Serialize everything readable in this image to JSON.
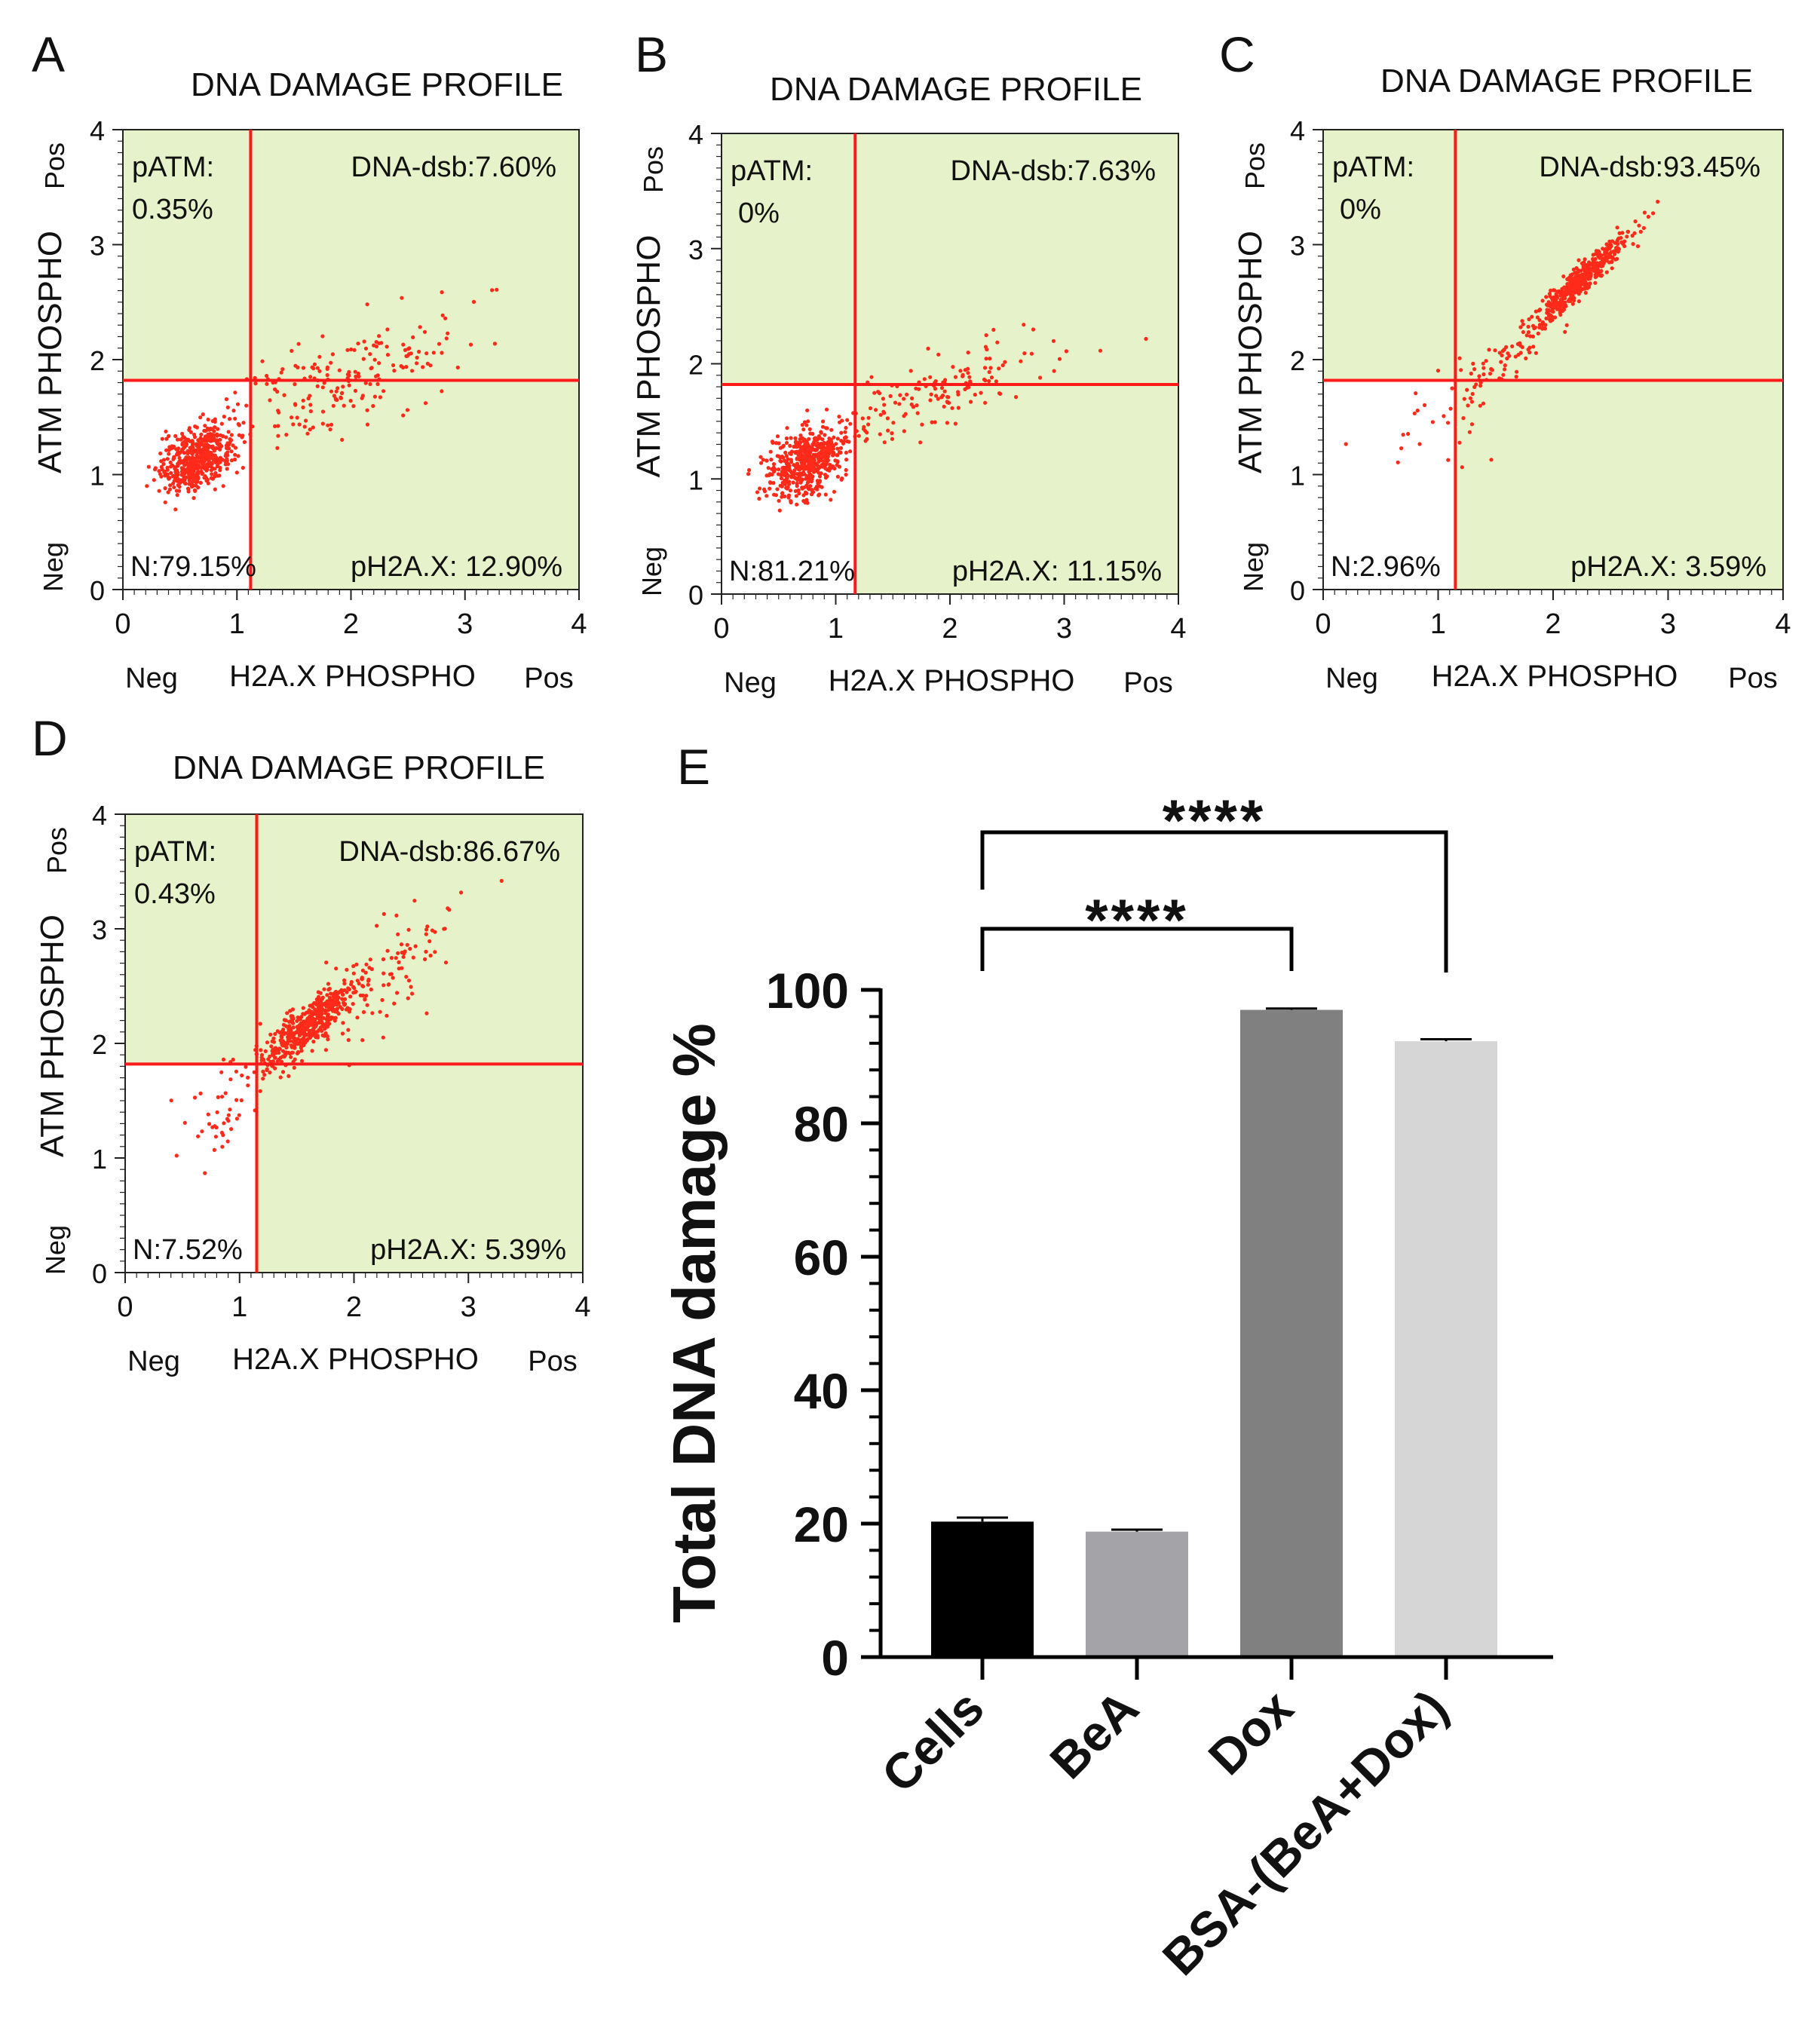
{
  "colors": {
    "quadrant_fill": "#e6f2c9",
    "gate_line": "#ff1a1a",
    "event_dot": "#ff2a1a",
    "axis": "#222222",
    "bar_cells": "#000000",
    "bar_bea": "#a4a4a8",
    "bar_dox": "#808080",
    "bar_bsa": "#d6d6d6"
  },
  "chart_data": [
    {
      "panel": "A",
      "type": "scatter",
      "title": "DNA DAMAGE PROFILE",
      "xlabel": "H2A.X PHOSPHO",
      "ylabel": "ATM PHOSPHO",
      "x_neg_label": "Neg",
      "x_pos_label": "Pos",
      "y_neg_label": "Neg",
      "y_pos_label": "Pos",
      "xlim": [
        0,
        4
      ],
      "ylim": [
        0,
        4
      ],
      "ticks": [
        "0",
        "1",
        "2",
        "3",
        "4"
      ],
      "gate": {
        "x": 1.12,
        "y": 1.82
      },
      "quadrants": {
        "upper_left": "pATM:\n0.35%",
        "upper_right": "DNA-dsb:7.60%",
        "lower_left": "N:79.15%",
        "lower_right": "pH2A.X: 12.90%"
      },
      "point_clusters": [
        {
          "cx": 0.65,
          "cy": 1.15,
          "sx": 0.16,
          "sy": 0.14,
          "n": 520,
          "r": 0.35
        },
        {
          "cx": 1.9,
          "cy": 1.8,
          "sx": 0.55,
          "sy": 0.3,
          "n": 190,
          "r": 0.7
        }
      ]
    },
    {
      "panel": "B",
      "type": "scatter",
      "title": "DNA DAMAGE PROFILE",
      "xlabel": "H2A.X PHOSPHO",
      "ylabel": "ATM PHOSPHO",
      "x_neg_label": "Neg",
      "x_pos_label": "Pos",
      "y_neg_label": "Neg",
      "y_pos_label": "Pos",
      "xlim": [
        0,
        4
      ],
      "ylim": [
        0,
        4
      ],
      "ticks": [
        "0",
        "1",
        "2",
        "3",
        "4"
      ],
      "gate": {
        "x": 1.17,
        "y": 1.82
      },
      "quadrants": {
        "upper_left": "pATM:\n0%",
        "upper_right": "DNA-dsb:7.63%",
        "lower_left": "N:81.21%",
        "lower_right": "pH2A.X: 11.15%"
      },
      "point_clusters": [
        {
          "cx": 0.75,
          "cy": 1.15,
          "sx": 0.18,
          "sy": 0.15,
          "n": 540,
          "r": 0.4
        },
        {
          "cx": 1.9,
          "cy": 1.75,
          "sx": 0.5,
          "sy": 0.25,
          "n": 150,
          "r": 0.75
        }
      ]
    },
    {
      "panel": "C",
      "type": "scatter",
      "title": "DNA DAMAGE PROFILE",
      "xlabel": "H2A.X PHOSPHO",
      "ylabel": "ATM PHOSPHO",
      "x_neg_label": "Neg",
      "x_pos_label": "Pos",
      "y_neg_label": "Neg",
      "y_pos_label": "Pos",
      "xlim": [
        0,
        4
      ],
      "ylim": [
        0,
        4
      ],
      "ticks": [
        "0",
        "1",
        "2",
        "3",
        "4"
      ],
      "gate": {
        "x": 1.15,
        "y": 1.82
      },
      "quadrants": {
        "upper_left": "pATM:\n0%",
        "upper_right": "DNA-dsb:93.45%",
        "lower_left": "N:2.96%",
        "lower_right": "pH2A.X: 3.59%"
      },
      "point_clusters": [
        {
          "cx": 2.25,
          "cy": 2.7,
          "sx": 0.22,
          "sy": 0.22,
          "n": 460,
          "r": 0.95
        },
        {
          "cx": 1.55,
          "cy": 1.95,
          "sx": 0.2,
          "sy": 0.18,
          "n": 60,
          "r": 0.8
        },
        {
          "cx": 1.0,
          "cy": 1.4,
          "sx": 0.25,
          "sy": 0.25,
          "n": 25,
          "r": 0.3
        }
      ]
    },
    {
      "panel": "D",
      "type": "scatter",
      "title": "DNA DAMAGE PROFILE",
      "xlabel": "H2A.X PHOSPHO",
      "ylabel": "ATM PHOSPHO",
      "x_neg_label": "Neg",
      "x_pos_label": "Pos",
      "y_neg_label": "Neg",
      "y_pos_label": "Pos",
      "xlim": [
        0,
        4
      ],
      "ylim": [
        0,
        4
      ],
      "ticks": [
        "0",
        "1",
        "2",
        "3",
        "4"
      ],
      "gate": {
        "x": 1.15,
        "y": 1.82
      },
      "quadrants": {
        "upper_left": "pATM:\n0.43%",
        "upper_right": "DNA-dsb:86.67%",
        "lower_left": "N:7.52%",
        "lower_right": "pH2A.X: 5.39%"
      },
      "point_clusters": [
        {
          "cx": 1.6,
          "cy": 2.15,
          "sx": 0.22,
          "sy": 0.2,
          "n": 480,
          "r": 0.85
        },
        {
          "cx": 2.3,
          "cy": 2.6,
          "sx": 0.3,
          "sy": 0.3,
          "n": 90,
          "r": 0.7
        },
        {
          "cx": 0.9,
          "cy": 1.45,
          "sx": 0.22,
          "sy": 0.25,
          "n": 45,
          "r": 0.4
        }
      ]
    },
    {
      "panel": "E",
      "type": "bar",
      "categories": [
        "Cells",
        "BeA",
        "Dox",
        "BSA-(BeA+Dox)"
      ],
      "values": [
        20.3,
        18.8,
        97.0,
        92.3
      ],
      "errors": [
        0.6,
        0.3,
        0.2,
        0.3
      ],
      "ylabel": "Total DNA damage %",
      "ylim": [
        0,
        100
      ],
      "yticks": [
        "0",
        "20",
        "40",
        "60",
        "80",
        "100"
      ],
      "significance": [
        {
          "from": 0,
          "to": 2,
          "label": "****"
        },
        {
          "from": 0,
          "to": 3,
          "label": "****"
        }
      ]
    }
  ]
}
